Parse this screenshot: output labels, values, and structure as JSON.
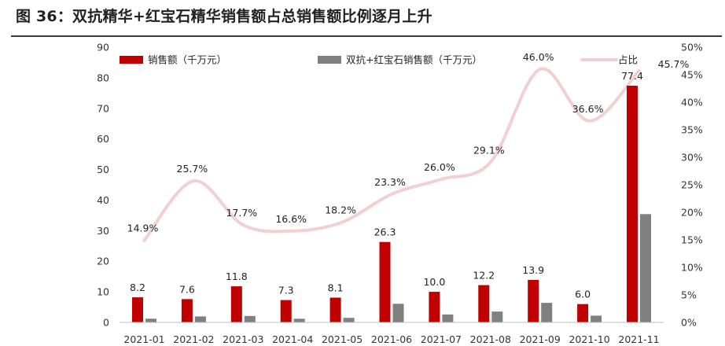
{
  "title": "图 36：双抗精华+红宝石精华销售额占总销售额比例逐月上升",
  "chart_data": {
    "type": "bar",
    "categories": [
      "2021-01",
      "2021-02",
      "2021-03",
      "2021-04",
      "2021-05",
      "2021-06",
      "2021-07",
      "2021-08",
      "2021-09",
      "2021-10",
      "2021-11"
    ],
    "series": [
      {
        "name": "销售额（千万元）",
        "type": "bar",
        "axis": "left",
        "color": "#c00000",
        "values": [
          8.2,
          7.6,
          11.8,
          7.3,
          8.1,
          26.3,
          10.0,
          12.2,
          13.9,
          6.0,
          77.4
        ],
        "labels": [
          "8.2",
          "7.6",
          "11.8",
          "7.3",
          "8.1",
          "26.3",
          "10.0",
          "12.2",
          "13.9",
          "6.0",
          "77.4"
        ]
      },
      {
        "name": "双抗+红宝石销售额（千万元）",
        "type": "bar",
        "axis": "left",
        "color": "#808080",
        "values": [
          1.2,
          1.95,
          2.1,
          1.2,
          1.5,
          6.1,
          2.6,
          3.55,
          6.4,
          2.2,
          35.4
        ]
      },
      {
        "name": "占比",
        "type": "line",
        "axis": "right",
        "color": "#f2d0d0",
        "smooth": true,
        "values": [
          14.9,
          25.7,
          17.7,
          16.6,
          18.2,
          23.3,
          26.0,
          29.1,
          46.0,
          36.6,
          45.7
        ],
        "labels": [
          "14.9%",
          "25.7%",
          "17.7%",
          "16.6%",
          "18.2%",
          "23.3%",
          "26.0%",
          "29.1%",
          "46.0%",
          "36.6%",
          "45.7%"
        ]
      }
    ],
    "ylim": [
      0,
      90
    ],
    "yticks": [
      "0",
      "10",
      "20",
      "30",
      "40",
      "50",
      "60",
      "70",
      "80",
      "90"
    ],
    "y2lim": [
      0,
      50
    ],
    "y2ticks": [
      "0%",
      "5%",
      "10%",
      "15%",
      "20%",
      "25%",
      "30%",
      "35%",
      "40%",
      "45%",
      "50%"
    ],
    "grid": false,
    "legend": "top"
  }
}
